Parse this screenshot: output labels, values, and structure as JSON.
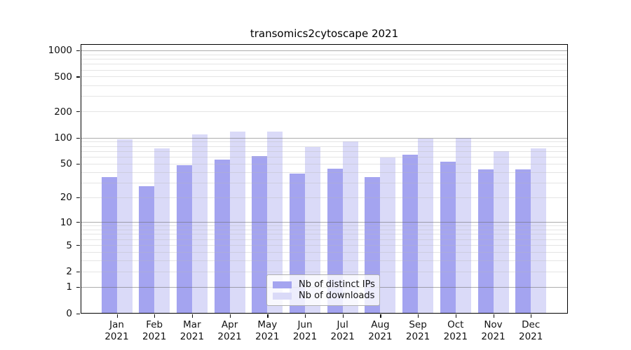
{
  "title": "transomics2cytoscape 2021",
  "legend": {
    "items": [
      {
        "label": "Nb of distinct IPs",
        "color": "#a4a4f0"
      },
      {
        "label": "Nb of downloads",
        "color": "#dadaf8"
      }
    ]
  },
  "chart_data": {
    "type": "bar",
    "title": "transomics2cytoscape 2021",
    "categories": [
      "Jan 2021",
      "Feb 2021",
      "Mar 2021",
      "Apr 2021",
      "May 2021",
      "Jun 2021",
      "Jul 2021",
      "Aug 2021",
      "Sep 2021",
      "Oct 2021",
      "Nov 2021",
      "Dec 2021"
    ],
    "series": [
      {
        "name": "Nb of distinct IPs",
        "color": "#a4a4f0",
        "values": [
          35,
          27,
          48,
          56,
          61,
          38,
          44,
          35,
          63,
          53,
          43,
          43
        ]
      },
      {
        "name": "Nb of downloads",
        "color": "#dadaf8",
        "values": [
          95,
          75,
          108,
          117,
          117,
          78,
          90,
          59,
          97,
          100,
          70,
          75
        ]
      }
    ],
    "xlabel": "",
    "ylabel": "",
    "yscale": "log1p",
    "ylim": [
      0,
      1178
    ],
    "yticks": [
      0,
      1,
      2,
      5,
      10,
      20,
      50,
      100,
      200,
      500,
      1000
    ],
    "major_gridlines": [
      1,
      10,
      100,
      1000
    ],
    "minor_gridlines": [
      2,
      3,
      4,
      5,
      6,
      7,
      8,
      9,
      20,
      30,
      40,
      50,
      60,
      70,
      80,
      90,
      200,
      300,
      400,
      500,
      600,
      700,
      800,
      900
    ],
    "grid": true,
    "legend_position": "lower center"
  }
}
